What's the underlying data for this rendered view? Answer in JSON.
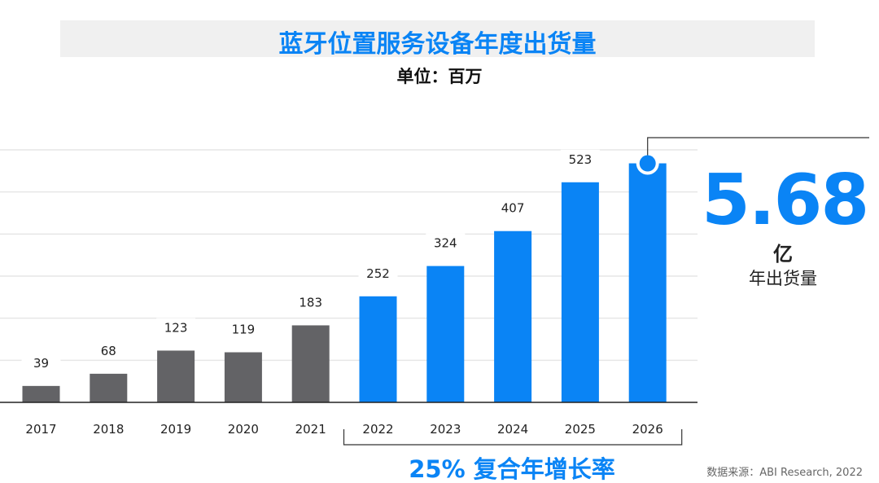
{
  "title": "蓝牙位置服务设备年度出货量",
  "unit_label": "单位：百万",
  "highlight": {
    "value": "5.68",
    "unit": "亿",
    "caption": "年出货量"
  },
  "cagr_label": "25% 复合年增长率",
  "source": "数据来源：ABI Research, 2022",
  "colors": {
    "historical": "#636366",
    "forecast": "#0a84f5",
    "grid": "#e6e6e6"
  },
  "chart_data": {
    "type": "bar",
    "categories": [
      "2017",
      "2018",
      "2019",
      "2020",
      "2021",
      "2022",
      "2023",
      "2024",
      "2025",
      "2026"
    ],
    "values": [
      39,
      68,
      123,
      119,
      183,
      252,
      324,
      407,
      523,
      568
    ],
    "data_labels": [
      "39",
      "68",
      "123",
      "119",
      "183",
      "252",
      "324",
      "407",
      "523",
      ""
    ],
    "forecast_from": "2022",
    "ylim": [
      0,
      600
    ],
    "grid": true,
    "ytick_step": 100,
    "title": "蓝牙位置服务设备年度出货量",
    "ylabel": "单位：百万"
  }
}
